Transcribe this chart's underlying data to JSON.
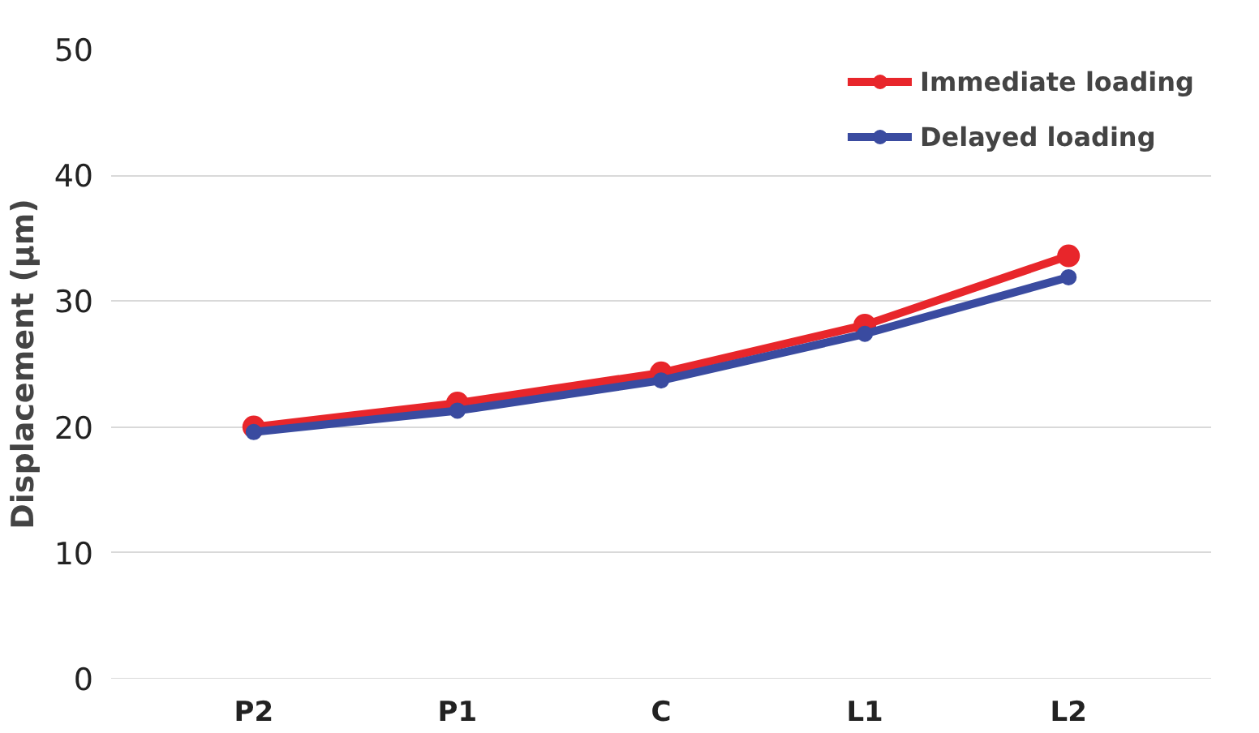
{
  "chart_data": {
    "type": "line",
    "ylabel": "Displacement (µm)",
    "categories": [
      "P2",
      "P1",
      "C",
      "L1",
      "L2"
    ],
    "series": [
      {
        "name": "Immediate loading",
        "color": "#e8262b",
        "values": [
          20.0,
          21.9,
          24.3,
          28.1,
          33.6
        ]
      },
      {
        "name": "Delayed loading",
        "color": "#3a4ba0",
        "values": [
          19.6,
          21.3,
          23.7,
          27.4,
          31.9
        ]
      }
    ],
    "ylim": [
      0,
      50
    ],
    "yticks": [
      0,
      10,
      20,
      30,
      40,
      50
    ],
    "grid": "y",
    "legend": "top right",
    "marker": "circle",
    "line_style": "solid"
  }
}
